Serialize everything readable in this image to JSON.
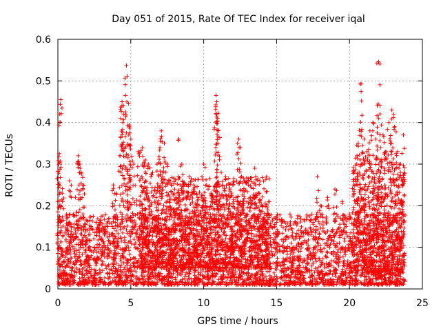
{
  "chart_data": {
    "type": "scatter",
    "title": "Day 051 of 2015, Rate Of TEC Index for receiver iqal",
    "xlabel": "GPS time / hours",
    "ylabel": "ROTI / TECUs",
    "xlim": [
      0,
      25
    ],
    "ylim": [
      0,
      0.6
    ],
    "x_ticks": [
      0,
      5,
      10,
      15,
      20,
      25
    ],
    "y_ticks": [
      0,
      0.1,
      0.2,
      0.3,
      0.4,
      0.5,
      0.6
    ],
    "x_tick_labels": [
      "0",
      "5",
      "10",
      "15",
      "20",
      "25"
    ],
    "y_tick_labels": [
      "0",
      "0.1",
      "0.2",
      "0.3",
      "0.4",
      "0.5",
      "0.6"
    ],
    "grid": true,
    "marker": "+",
    "marker_color": "#ff0000",
    "series": [
      {
        "name": "ROTI",
        "points": [
          [
            0.2,
            0.455
          ],
          [
            0.1,
            0.325
          ],
          [
            0.05,
            0.3
          ],
          [
            0.3,
            0.23
          ],
          [
            0.6,
            0.18
          ],
          [
            0.8,
            0.26
          ],
          [
            1.4,
            0.32
          ],
          [
            1.5,
            0.3
          ],
          [
            1.6,
            0.28
          ],
          [
            1.7,
            0.25
          ],
          [
            1.2,
            0.22
          ],
          [
            2.0,
            0.12
          ],
          [
            2.5,
            0.1
          ],
          [
            3.0,
            0.14
          ],
          [
            3.5,
            0.17
          ],
          [
            3.8,
            0.25
          ],
          [
            4.0,
            0.23
          ],
          [
            4.3,
            0.41
          ],
          [
            4.4,
            0.45
          ],
          [
            4.5,
            0.42
          ],
          [
            4.7,
            0.537
          ],
          [
            4.85,
            0.445
          ],
          [
            4.9,
            0.39
          ],
          [
            5.0,
            0.36
          ],
          [
            5.2,
            0.3
          ],
          [
            5.5,
            0.33
          ],
          [
            5.8,
            0.34
          ],
          [
            6.0,
            0.31
          ],
          [
            6.2,
            0.3
          ],
          [
            6.5,
            0.28
          ],
          [
            6.8,
            0.3
          ],
          [
            7.0,
            0.34
          ],
          [
            7.1,
            0.38
          ],
          [
            7.3,
            0.35
          ],
          [
            7.5,
            0.3
          ],
          [
            7.7,
            0.26
          ],
          [
            8.0,
            0.24
          ],
          [
            8.3,
            0.36
          ],
          [
            8.5,
            0.3
          ],
          [
            8.8,
            0.25
          ],
          [
            9.0,
            0.27
          ],
          [
            9.3,
            0.24
          ],
          [
            9.6,
            0.22
          ],
          [
            10.0,
            0.3
          ],
          [
            10.2,
            0.25
          ],
          [
            10.5,
            0.23
          ],
          [
            10.85,
            0.465
          ],
          [
            10.9,
            0.45
          ],
          [
            10.95,
            0.41
          ],
          [
            11.0,
            0.38
          ],
          [
            11.2,
            0.28
          ],
          [
            11.5,
            0.27
          ],
          [
            11.8,
            0.22
          ],
          [
            12.0,
            0.25
          ],
          [
            12.4,
            0.36
          ],
          [
            12.5,
            0.34
          ],
          [
            12.8,
            0.26
          ],
          [
            13.2,
            0.22
          ],
          [
            13.5,
            0.29
          ],
          [
            13.8,
            0.23
          ],
          [
            14.0,
            0.2
          ],
          [
            14.4,
            0.19
          ],
          [
            14.8,
            0.17
          ],
          [
            15.0,
            0.16
          ],
          [
            15.5,
            0.12
          ],
          [
            16.0,
            0.11
          ],
          [
            16.5,
            0.13
          ],
          [
            17.0,
            0.14
          ],
          [
            17.5,
            0.16
          ],
          [
            17.8,
            0.27
          ],
          [
            18.0,
            0.2
          ],
          [
            18.5,
            0.22
          ],
          [
            19.0,
            0.24
          ],
          [
            19.5,
            0.21
          ],
          [
            20.0,
            0.18
          ],
          [
            20.3,
            0.25
          ],
          [
            20.5,
            0.3
          ],
          [
            20.6,
            0.35
          ],
          [
            20.8,
            0.493
          ],
          [
            21.0,
            0.36
          ],
          [
            21.2,
            0.33
          ],
          [
            21.4,
            0.38
          ],
          [
            21.6,
            0.4
          ],
          [
            21.8,
            0.36
          ],
          [
            22.0,
            0.546
          ],
          [
            22.1,
            0.44
          ],
          [
            22.3,
            0.37
          ],
          [
            22.5,
            0.33
          ],
          [
            22.7,
            0.4
          ],
          [
            22.9,
            0.43
          ],
          [
            23.1,
            0.39
          ],
          [
            23.3,
            0.33
          ],
          [
            23.5,
            0.3
          ],
          [
            23.7,
            0.37
          ],
          [
            23.6,
            0.26
          ]
        ],
        "dense_bands": [
          {
            "x_range": [
              0,
              23.8
            ],
            "y_base": 0.01,
            "y_spread": 0.17
          },
          {
            "x_range": [
              5.6,
              14.5
            ],
            "y_base": 0.05,
            "y_spread": 0.22
          },
          {
            "x_range": [
              20.2,
              23.8
            ],
            "y_base": 0.04,
            "y_spread": 0.28
          }
        ]
      }
    ]
  }
}
